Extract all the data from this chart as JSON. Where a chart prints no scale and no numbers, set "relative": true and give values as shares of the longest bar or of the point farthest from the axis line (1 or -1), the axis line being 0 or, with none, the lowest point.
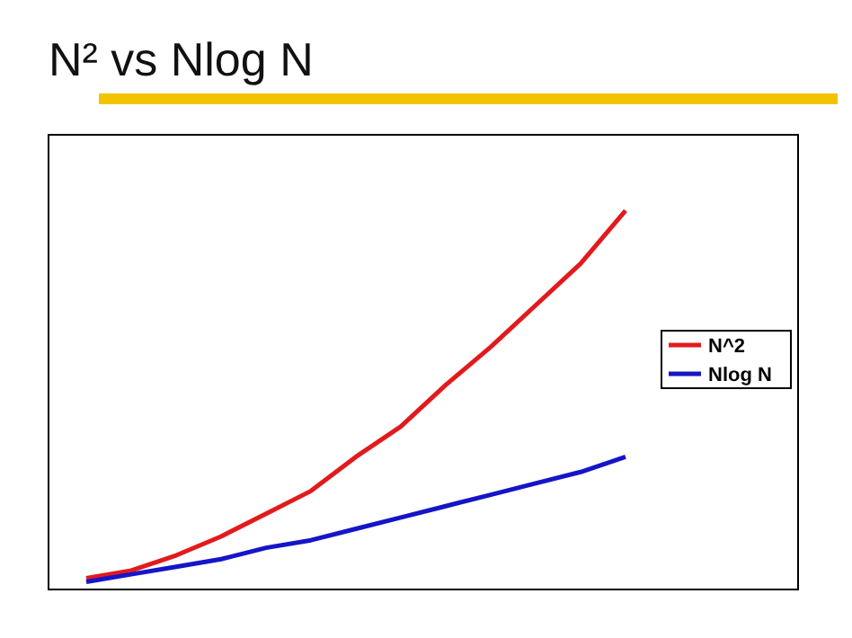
{
  "chart_data": {
    "type": "line",
    "title": "N² vs Nlog N",
    "relative": true,
    "legend": "right",
    "grid": false,
    "marker": "none",
    "line_style": "solid",
    "categories": [
      null,
      null,
      null,
      null,
      null,
      null,
      null,
      null,
      null,
      null,
      null,
      null,
      null
    ],
    "series": [
      {
        "name": "N^2",
        "color": "#e31a1c",
        "values": [
          0.03,
          0.05,
          0.09,
          0.14,
          0.2,
          0.26,
          0.35,
          0.43,
          0.54,
          0.64,
          0.75,
          0.86,
          1
        ]
      },
      {
        "name": "Nlog N",
        "color": "#1515c8",
        "values": [
          0.02,
          0.04,
          0.06,
          0.08,
          0.11,
          0.13,
          0.16,
          0.19,
          0.22,
          0.25,
          0.28,
          0.31,
          0.35
        ]
      }
    ]
  }
}
